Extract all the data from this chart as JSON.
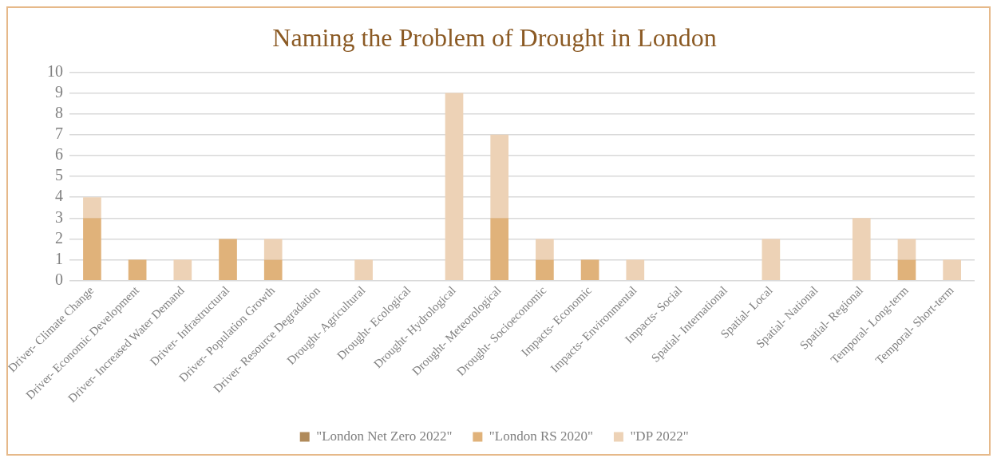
{
  "chart_data": {
    "type": "bar",
    "title": "Naming the Problem of Drought in London",
    "stacked": true,
    "categories": [
      "Driver- Climate Change",
      "Driver- Economic Development",
      "Driver- Increased Water Demand",
      "Driver- Infrastructural",
      "Driver- Population Growth",
      "Driver- Resource Degradation",
      "Drought- Agricultural",
      "Drought- Ecological",
      "Drought- Hydrological",
      "Drought- Meteorological",
      "Drought- Socioeconomic",
      "Impacts- Economic",
      "Impacts- Environmental",
      "Impacts- Social",
      "Spatial- International",
      "Spatial- Local",
      "Spatial- National",
      "Spatial- Regional",
      "Temporal- Long-term",
      "Temporal- Short-term"
    ],
    "series": [
      {
        "name": "\"London Net Zero 2022\"",
        "color": "#b08a5a",
        "values": [
          0,
          0,
          0,
          0,
          0,
          0,
          0,
          0,
          0,
          0,
          0,
          0,
          0,
          0,
          0,
          0,
          0,
          0,
          0,
          0
        ]
      },
      {
        "name": "\"London RS 2020\"",
        "color": "#e0b27a",
        "values": [
          3,
          1,
          0,
          2,
          1,
          0,
          0,
          0,
          0,
          3,
          1,
          1,
          0,
          0,
          0,
          0,
          0,
          0,
          1,
          0
        ]
      },
      {
        "name": "\"DP 2022\"",
        "color": "#edd2b6",
        "values": [
          1,
          0,
          1,
          0,
          1,
          0,
          1,
          0,
          9,
          4,
          1,
          0,
          1,
          0,
          0,
          2,
          0,
          3,
          1,
          1
        ]
      }
    ],
    "ylim": [
      0,
      10
    ],
    "yticks": [
      0,
      1,
      2,
      3,
      4,
      5,
      6,
      7,
      8,
      9,
      10
    ],
    "grid": "y",
    "legend": "bottom"
  }
}
